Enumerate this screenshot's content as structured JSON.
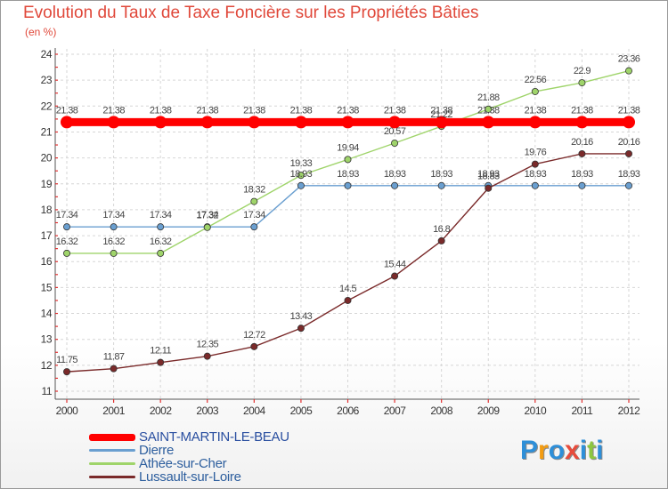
{
  "title": "Evolution du Taux de Taxe Foncière sur les Propriétés Bâties",
  "subtitle": "(en %)",
  "logo": {
    "letters": [
      "P",
      "r",
      "o",
      "x",
      "i",
      "t",
      "i"
    ],
    "colors": [
      "#2e8fd8",
      "#f39c12",
      "#2e8fd8",
      "#e74c3c",
      "#2e8fd8",
      "#8dc63f",
      "#2e8fd8"
    ]
  },
  "chart_data": {
    "type": "line",
    "title": "Evolution du Taux de Taxe Foncière sur les Propriétés Bâties",
    "ylabel": "(en %)",
    "categories": [
      "2000",
      "2001",
      "2002",
      "2003",
      "2004",
      "2005",
      "2006",
      "2007",
      "2008",
      "2009",
      "2010",
      "2011",
      "2012"
    ],
    "ylim": [
      11,
      24
    ],
    "yticks": [
      11,
      12,
      13,
      14,
      15,
      16,
      17,
      18,
      19,
      20,
      21,
      22,
      23,
      24
    ],
    "grid": true,
    "series": [
      {
        "name": "SAINT-MARTIN-LE-BEAU",
        "color": "#ff0000",
        "bold": true,
        "values": [
          21.38,
          21.38,
          21.38,
          21.38,
          21.38,
          21.38,
          21.38,
          21.38,
          21.38,
          21.38,
          21.38,
          21.38,
          21.38
        ]
      },
      {
        "name": "Dierre",
        "color": "#6a9fd0",
        "bold": false,
        "values": [
          17.34,
          17.34,
          17.34,
          17.34,
          17.34,
          18.93,
          18.93,
          18.93,
          18.93,
          18.93,
          18.93,
          18.93,
          18.93
        ]
      },
      {
        "name": "Athée-sur-Cher",
        "color": "#9fd46a",
        "bold": false,
        "values": [
          16.32,
          16.32,
          16.32,
          17.32,
          18.32,
          19.33,
          19.94,
          20.57,
          21.22,
          21.88,
          22.56,
          22.9,
          23.36
        ]
      },
      {
        "name": "Lussault-sur-Loire",
        "color": "#7a2a2a",
        "bold": false,
        "values": [
          11.75,
          11.87,
          12.11,
          12.35,
          12.72,
          13.43,
          14.5,
          15.44,
          16.8,
          18.83,
          19.76,
          20.16,
          20.16
        ]
      }
    ]
  }
}
